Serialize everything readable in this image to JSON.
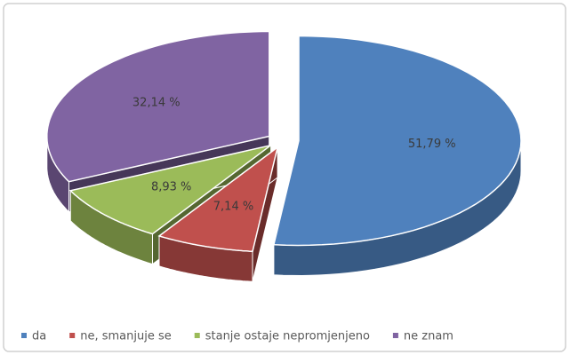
{
  "chart_data": {
    "type": "pie",
    "categories": [
      "da",
      "ne, smanjuje se",
      "stanje ostaje nepromjenjeno",
      "ne znam"
    ],
    "values": [
      51.79,
      7.14,
      8.93,
      32.14
    ],
    "value_labels": [
      "51,79 %",
      "7,14 %",
      "8,93 %",
      "32,14 %"
    ],
    "colors": [
      "#4f81bd",
      "#c0504d",
      "#9bbb59",
      "#8064a2"
    ],
    "legend": "bottom"
  }
}
